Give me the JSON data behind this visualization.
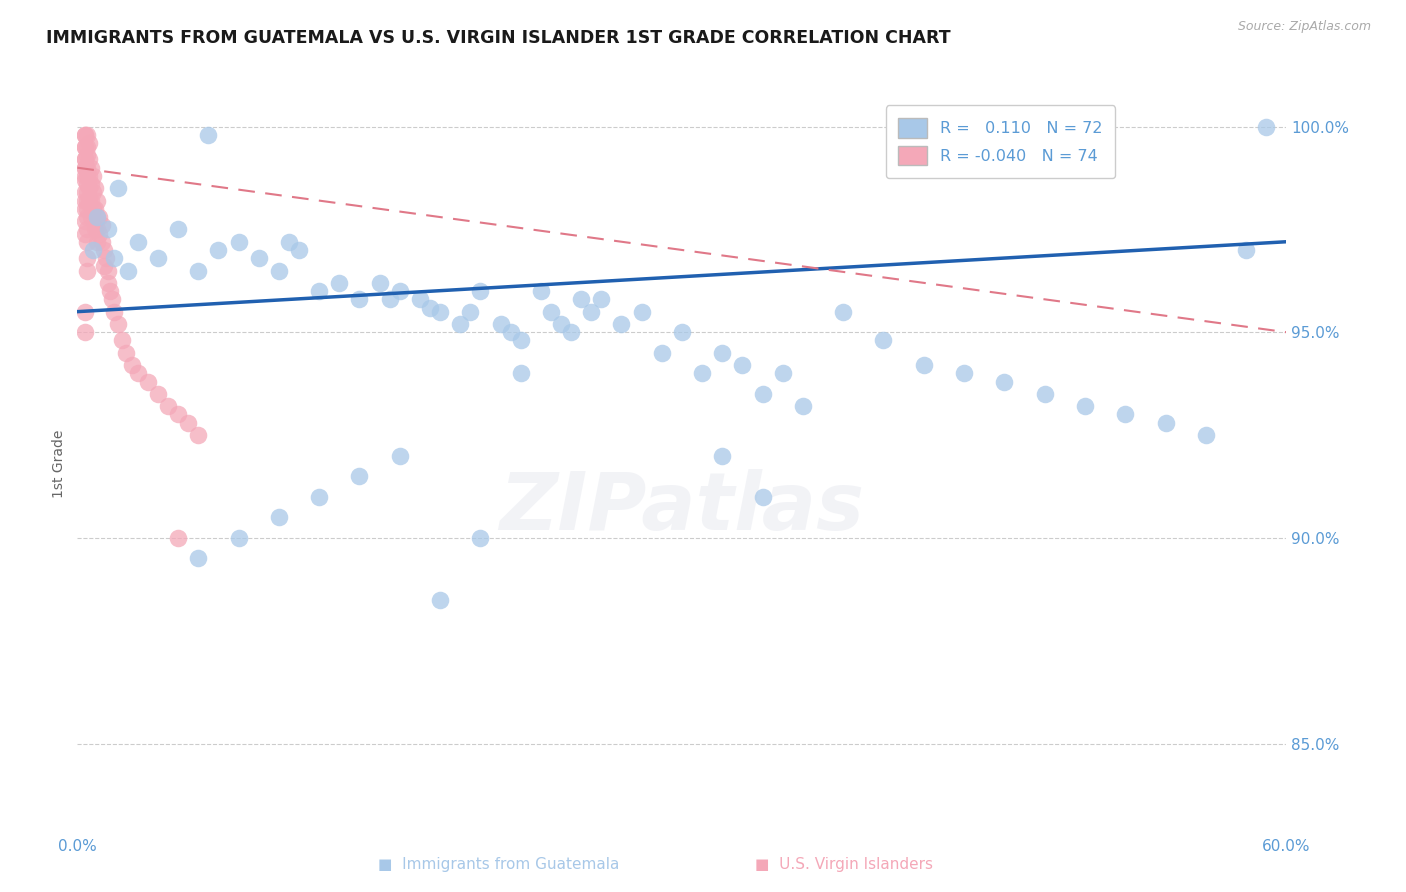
{
  "title": "IMMIGRANTS FROM GUATEMALA VS U.S. VIRGIN ISLANDER 1ST GRADE CORRELATION CHART",
  "source": "Source: ZipAtlas.com",
  "ylabel": "1st Grade",
  "x_label_blue": "Immigrants from Guatemala",
  "x_label_pink": "U.S. Virgin Islanders",
  "xlim": [
    0.0,
    0.6
  ],
  "ylim": [
    0.828,
    1.008
  ],
  "yticks": [
    0.85,
    0.9,
    0.95,
    1.0
  ],
  "yticklabels": [
    "85.0%",
    "90.0%",
    "95.0%",
    "100.0%"
  ],
  "R_blue": 0.11,
  "N_blue": 72,
  "R_pink": -0.04,
  "N_pink": 74,
  "blue_color": "#a8c8e8",
  "pink_color": "#f4a8b8",
  "blue_line_color": "#2060b0",
  "pink_line_color": "#e07888",
  "axis_color": "#5b9bd5",
  "title_color": "#1a1a1a",
  "blue_line_y0": 0.955,
  "blue_line_y1": 0.972,
  "pink_line_y0": 0.99,
  "pink_line_y1": 0.95,
  "blue_scatter_x": [
    0.015,
    0.02,
    0.025,
    0.01,
    0.008,
    0.018,
    0.03,
    0.04,
    0.05,
    0.06,
    0.07,
    0.08,
    0.065,
    0.09,
    0.1,
    0.11,
    0.12,
    0.105,
    0.13,
    0.14,
    0.15,
    0.16,
    0.155,
    0.17,
    0.175,
    0.18,
    0.19,
    0.2,
    0.195,
    0.21,
    0.215,
    0.22,
    0.23,
    0.235,
    0.24,
    0.245,
    0.25,
    0.255,
    0.26,
    0.27,
    0.28,
    0.29,
    0.3,
    0.31,
    0.32,
    0.33,
    0.34,
    0.35,
    0.36,
    0.38,
    0.4,
    0.42,
    0.44,
    0.46,
    0.48,
    0.5,
    0.52,
    0.54,
    0.56,
    0.58,
    0.22,
    0.2,
    0.18,
    0.16,
    0.14,
    0.12,
    0.1,
    0.08,
    0.06,
    0.32,
    0.34,
    0.59
  ],
  "blue_scatter_y": [
    0.975,
    0.985,
    0.965,
    0.978,
    0.97,
    0.968,
    0.972,
    0.968,
    0.975,
    0.965,
    0.97,
    0.972,
    0.998,
    0.968,
    0.965,
    0.97,
    0.96,
    0.972,
    0.962,
    0.958,
    0.962,
    0.96,
    0.958,
    0.958,
    0.956,
    0.955,
    0.952,
    0.96,
    0.955,
    0.952,
    0.95,
    0.948,
    0.96,
    0.955,
    0.952,
    0.95,
    0.958,
    0.955,
    0.958,
    0.952,
    0.955,
    0.945,
    0.95,
    0.94,
    0.945,
    0.942,
    0.935,
    0.94,
    0.932,
    0.955,
    0.948,
    0.942,
    0.94,
    0.938,
    0.935,
    0.932,
    0.93,
    0.928,
    0.925,
    0.97,
    0.94,
    0.9,
    0.885,
    0.92,
    0.915,
    0.91,
    0.905,
    0.9,
    0.895,
    0.92,
    0.91,
    1.0
  ],
  "pink_scatter_x": [
    0.004,
    0.004,
    0.004,
    0.004,
    0.004,
    0.005,
    0.005,
    0.005,
    0.005,
    0.005,
    0.005,
    0.005,
    0.005,
    0.005,
    0.005,
    0.006,
    0.006,
    0.006,
    0.006,
    0.006,
    0.007,
    0.007,
    0.007,
    0.007,
    0.008,
    0.008,
    0.008,
    0.009,
    0.009,
    0.009,
    0.01,
    0.01,
    0.01,
    0.01,
    0.011,
    0.011,
    0.012,
    0.012,
    0.013,
    0.013,
    0.014,
    0.015,
    0.015,
    0.016,
    0.017,
    0.018,
    0.02,
    0.022,
    0.024,
    0.027,
    0.03,
    0.035,
    0.04,
    0.045,
    0.05,
    0.055,
    0.06,
    0.005,
    0.005,
    0.005,
    0.005,
    0.004,
    0.004,
    0.004,
    0.004,
    0.004,
    0.004,
    0.004,
    0.004,
    0.004,
    0.004,
    0.05,
    0.004,
    0.004
  ],
  "pink_scatter_y": [
    0.998,
    0.995,
    0.992,
    0.99,
    0.988,
    0.998,
    0.995,
    0.993,
    0.99,
    0.988,
    0.986,
    0.984,
    0.982,
    0.98,
    0.978,
    0.996,
    0.992,
    0.988,
    0.985,
    0.982,
    0.99,
    0.986,
    0.982,
    0.978,
    0.988,
    0.984,
    0.98,
    0.985,
    0.98,
    0.975,
    0.982,
    0.978,
    0.975,
    0.972,
    0.978,
    0.974,
    0.976,
    0.972,
    0.97,
    0.966,
    0.968,
    0.965,
    0.962,
    0.96,
    0.958,
    0.955,
    0.952,
    0.948,
    0.945,
    0.942,
    0.94,
    0.938,
    0.935,
    0.932,
    0.93,
    0.928,
    0.925,
    0.975,
    0.972,
    0.968,
    0.965,
    0.998,
    0.995,
    0.992,
    0.99,
    0.987,
    0.984,
    0.982,
    0.98,
    0.977,
    0.974,
    0.9,
    0.955,
    0.95
  ]
}
